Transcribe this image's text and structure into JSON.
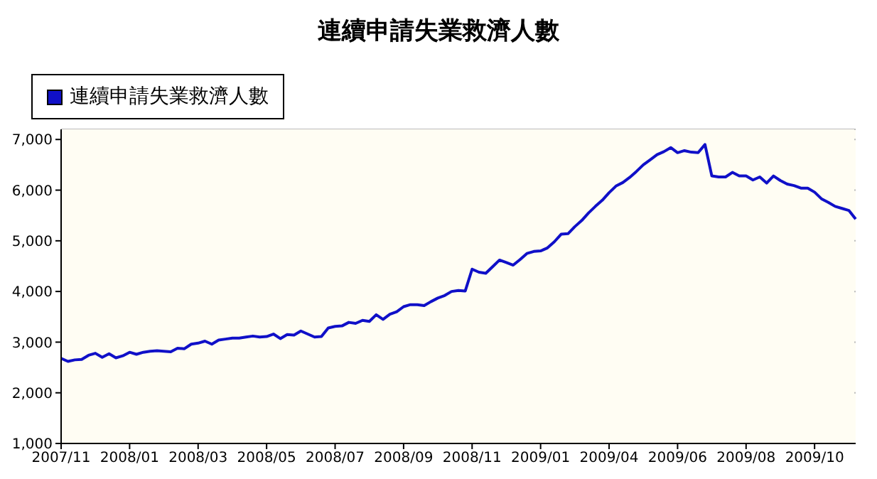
{
  "chart_data": {
    "type": "line",
    "title": "連續申請失業救濟人數",
    "categories": [
      "2007/11",
      null,
      null,
      null,
      null,
      null,
      null,
      null,
      null,
      null,
      "2008/01",
      null,
      null,
      null,
      null,
      null,
      null,
      null,
      null,
      null,
      "2008/03",
      null,
      null,
      null,
      null,
      null,
      null,
      null,
      null,
      null,
      "2008/05",
      null,
      null,
      null,
      null,
      null,
      null,
      null,
      null,
      null,
      "2008/07",
      null,
      null,
      null,
      null,
      null,
      null,
      null,
      null,
      null,
      "2008/09",
      null,
      null,
      null,
      null,
      null,
      null,
      null,
      null,
      null,
      "2008/11",
      null,
      null,
      null,
      null,
      null,
      null,
      null,
      null,
      null,
      "2009/01",
      null,
      null,
      null,
      null,
      null,
      null,
      null,
      null,
      null,
      "2009/04",
      null,
      null,
      null,
      null,
      null,
      null,
      null,
      null,
      null,
      "2009/06",
      null,
      null,
      null,
      null,
      null,
      null,
      null,
      null,
      null,
      "2009/08",
      null,
      null,
      null,
      null,
      null,
      null,
      null,
      null,
      null,
      "2009/10",
      null,
      null,
      null,
      null,
      null,
      null
    ],
    "series": [
      {
        "name": "連續申請失業救濟人數",
        "color": "#1010c8",
        "values": [
          2680,
          2620,
          2650,
          2660,
          2740,
          2780,
          2700,
          2770,
          2690,
          2730,
          2800,
          2760,
          2800,
          2820,
          2830,
          2820,
          2810,
          2880,
          2870,
          2960,
          2980,
          3020,
          2960,
          3040,
          3060,
          3080,
          3080,
          3100,
          3120,
          3100,
          3110,
          3160,
          3070,
          3150,
          3140,
          3220,
          3160,
          3100,
          3110,
          3280,
          3310,
          3320,
          3390,
          3370,
          3430,
          3410,
          3540,
          3450,
          3550,
          3600,
          3700,
          3740,
          3740,
          3720,
          3800,
          3870,
          3920,
          4000,
          4020,
          4010,
          4440,
          4380,
          4360,
          4490,
          4620,
          4570,
          4520,
          4630,
          4750,
          4790,
          4800,
          4860,
          4980,
          5130,
          5140,
          5280,
          5400,
          5550,
          5680,
          5800,
          5950,
          6080,
          6150,
          6250,
          6370,
          6500,
          6600,
          6700,
          6760,
          6840,
          6740,
          6780,
          6750,
          6740,
          6900,
          6280,
          6260,
          6260,
          6350,
          6280,
          6280,
          6200,
          6260,
          6140,
          6280,
          6190,
          6120,
          6090,
          6040,
          6040,
          5960,
          5830,
          5760,
          5680,
          5640,
          5600,
          5430
        ]
      }
    ],
    "ylim": [
      1000,
      7200
    ],
    "yticks": [
      {
        "value": 1000,
        "label": "1,000"
      },
      {
        "value": 2000,
        "label": "2,000"
      },
      {
        "value": 3000,
        "label": "3,000"
      },
      {
        "value": 4000,
        "label": "4,000"
      },
      {
        "value": 5000,
        "label": "5,000"
      },
      {
        "value": 6000,
        "label": "6,000"
      },
      {
        "value": 7000,
        "label": "7,000"
      }
    ],
    "grid": "y",
    "legend": "top left",
    "marker": "none",
    "line_style": "solid"
  }
}
